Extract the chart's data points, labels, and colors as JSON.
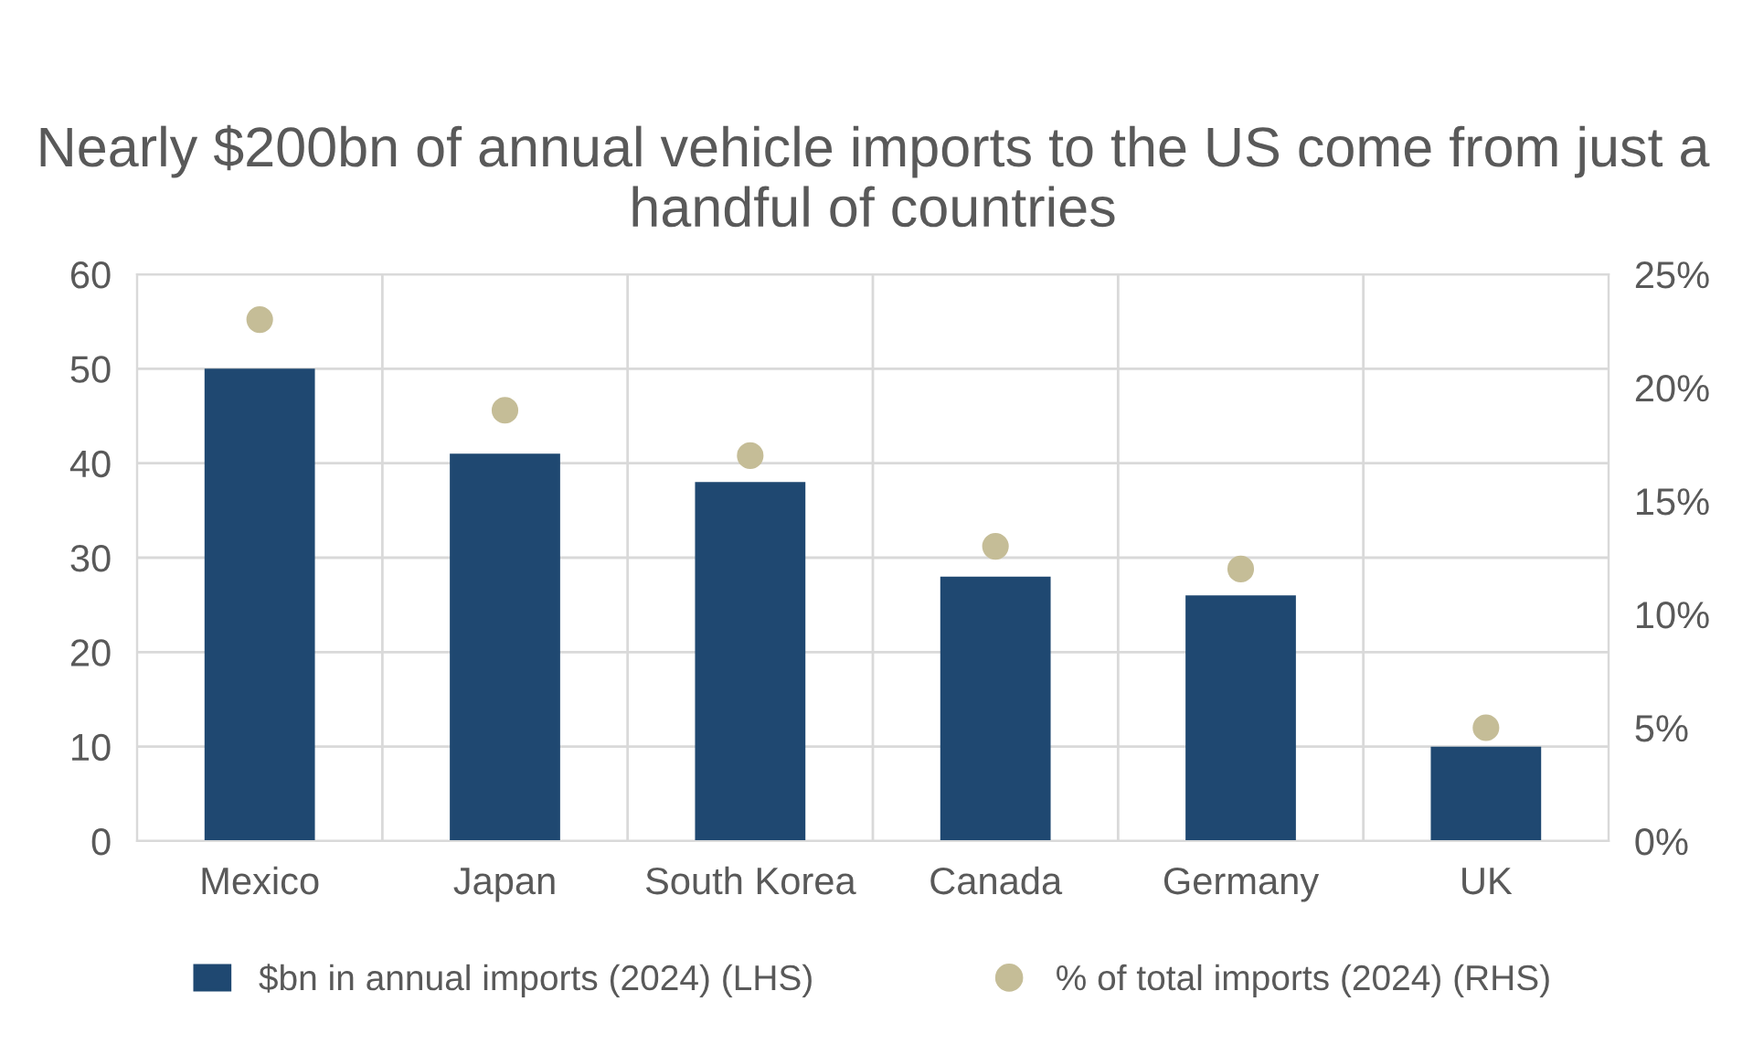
{
  "chart_data": {
    "type": "bar",
    "title": "Nearly $200bn of annual vehicle imports to the US come from just a handful of countries",
    "categories": [
      "Mexico",
      "Japan",
      "South Korea",
      "Canada",
      "Germany",
      "UK"
    ],
    "series": [
      {
        "name": "$bn in annual imports (2024) (LHS)",
        "color": "#1f4871",
        "values": [
          50,
          41,
          38,
          28,
          26,
          10
        ]
      },
      {
        "name": "% of total imports (2024) (RHS)",
        "type": "scatter",
        "axis": "y2",
        "color": "#c5bd97",
        "marker": "circle",
        "values": [
          23,
          19,
          17,
          13,
          12,
          5
        ]
      }
    ],
    "ylim": [
      0,
      60
    ],
    "yticks": [
      0,
      10,
      20,
      30,
      40,
      50,
      60
    ],
    "y2lim": [
      0,
      25
    ],
    "y2ticks": [
      {
        "value": 0,
        "label": "0%"
      },
      {
        "value": 5,
        "label": "5%"
      },
      {
        "value": 10,
        "label": "10%"
      },
      {
        "value": 15,
        "label": "15%"
      },
      {
        "value": 20,
        "label": "20%"
      },
      {
        "value": 25,
        "label": "25%"
      }
    ],
    "grid": true,
    "legend": "bottom"
  }
}
